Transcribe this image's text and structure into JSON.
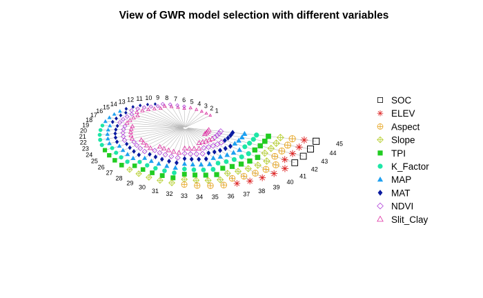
{
  "chart_data": {
    "type": "radial-scatter",
    "title": "View of GWR model selection with different variables",
    "subtitle": "",
    "xlabel": "",
    "ylabel": "",
    "models": [
      "1",
      "2",
      "3",
      "4",
      "5",
      "6",
      "7",
      "8",
      "9",
      "10",
      "11",
      "12",
      "13",
      "14",
      "15",
      "16",
      "17",
      "18",
      "19",
      "20",
      "21",
      "22",
      "23",
      "24",
      "25",
      "26",
      "27",
      "28",
      "29",
      "30",
      "31",
      "32",
      "33",
      "34",
      "35",
      "36",
      "37",
      "38",
      "39",
      "40",
      "41",
      "42",
      "43",
      "44",
      "45"
    ],
    "series": [
      {
        "name": "SOC",
        "marker": "open-square",
        "color": "#000000"
      },
      {
        "name": "ELEV",
        "marker": "asterisk",
        "color": "#dd2020"
      },
      {
        "name": "Aspect",
        "marker": "circle-plus",
        "color": "#e6a31c"
      },
      {
        "name": "Slope",
        "marker": "diamond-plus",
        "color": "#b8d033"
      },
      {
        "name": "TPI",
        "marker": "filled-square",
        "color": "#22cc22"
      },
      {
        "name": "K_Factor",
        "marker": "filled-circle",
        "color": "#1ee6a6"
      },
      {
        "name": "MAP",
        "marker": "filled-triangle",
        "color": "#1ea0f0"
      },
      {
        "name": "MAT",
        "marker": "filled-diamond",
        "color": "#0a1aa0"
      },
      {
        "name": "NDVI",
        "marker": "open-diamond",
        "color": "#b040d8"
      },
      {
        "name": "Slit_Clay",
        "marker": "open-triangle",
        "color": "#dd2aa0"
      }
    ],
    "legend": "right",
    "grid": false
  }
}
